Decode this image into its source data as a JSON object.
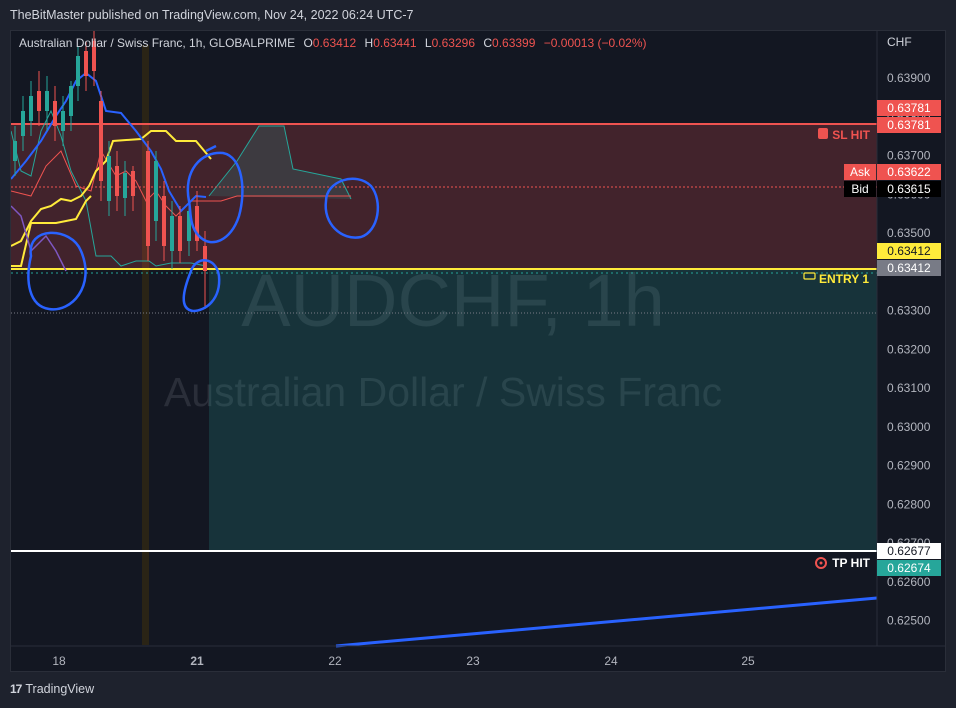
{
  "publisher_line": "TheBitMaster published on TradingView.com, Nov 24, 2022 06:24 UTC-7",
  "symbol": {
    "name": "Australian Dollar / Swiss Franc, 1h, GLOBALPRIME",
    "o_label": "O",
    "o": "0.63412",
    "h_label": "H",
    "h": "0.63441",
    "l_label": "L",
    "l": "0.63296",
    "c_label": "C",
    "c": "0.63399",
    "change": "−0.00013 (−0.02%)"
  },
  "watermark": {
    "ticker": "AUDCHF, 1h",
    "description": "Australian Dollar / Swiss Franc"
  },
  "price_axis": {
    "currency": "CHF",
    "ticks": [
      "0.63900",
      "0.63800",
      "0.63700",
      "0.63600",
      "0.63500",
      "0.63400",
      "0.63300",
      "0.63200",
      "0.63100",
      "0.63000",
      "0.62900",
      "0.62800",
      "0.62700",
      "0.62600",
      "0.62500"
    ]
  },
  "time_axis": {
    "ticks": [
      "18",
      "21",
      "22",
      "23",
      "24",
      "25"
    ]
  },
  "price_tags": {
    "sl_a": "0.63781",
    "sl_b": "0.63781",
    "ask_label": "Ask",
    "ask": "0.63622",
    "bid_label": "Bid",
    "bid": "0.63615",
    "entry_a": "0.63412",
    "entry_b": "0.63412",
    "tp_a": "0.62677",
    "tp_b": "0.62674"
  },
  "annotations": {
    "sl": "SL HIT",
    "entry": "ENTRY 1",
    "tp": "TP HIT"
  },
  "footer": {
    "brand": "TradingView",
    "logo": "17"
  },
  "colors": {
    "stop_zone": "#ef5350",
    "target_zone": "#26a69a",
    "entry_line": "#ffeb3b",
    "trendline": "#2962ff",
    "candle_up": "#26a69a",
    "candle_down": "#ef5350"
  }
}
